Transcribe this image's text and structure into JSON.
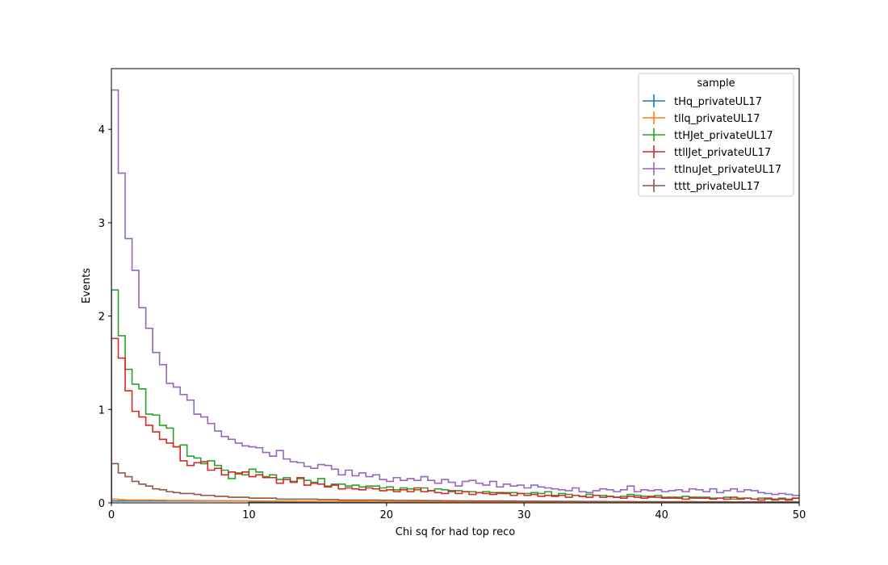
{
  "chart_data": {
    "type": "line",
    "subtype": "step-histogram",
    "xlabel": "Chi sq for had top reco",
    "ylabel": "Events",
    "xlim": [
      0,
      50
    ],
    "ylim": [
      0,
      4.65
    ],
    "x_ticks": [
      "0",
      "10",
      "20",
      "30",
      "40",
      "50"
    ],
    "y_ticks": [
      "0",
      "1",
      "2",
      "3",
      "4"
    ],
    "grid": false,
    "legend": {
      "title": "sample",
      "placement": "top-right"
    },
    "bin_edges_start": 0,
    "bin_width": 0.5,
    "series": [
      {
        "name": "tHq_privateUL17",
        "color": "#1f77b4",
        "values": [
          0.02,
          0.02,
          0.02,
          0.02,
          0.02,
          0.02,
          0.02,
          0.02,
          0.02,
          0.02,
          0.02,
          0.02,
          0.02,
          0.02,
          0.02,
          0.02,
          0.02,
          0.02,
          0.02,
          0.02,
          0.01,
          0.01,
          0.01,
          0.01,
          0.01,
          0.01,
          0.01,
          0.01,
          0.01,
          0.01,
          0.01,
          0.01,
          0.01,
          0.01,
          0.01,
          0.01,
          0.01,
          0.01,
          0.01,
          0.01,
          0.01,
          0.01,
          0.01,
          0.01,
          0.01,
          0.01,
          0.01,
          0.01,
          0.01,
          0.01,
          0.005,
          0.005,
          0.005,
          0.005,
          0.005,
          0.005,
          0.005,
          0.005,
          0.005,
          0.005,
          0.005,
          0.005,
          0.005,
          0.005,
          0.005,
          0.005,
          0.005,
          0.005,
          0.005,
          0.005,
          0.005,
          0.005,
          0.005,
          0.005,
          0.005,
          0.005,
          0.005,
          0.005,
          0.005,
          0.005,
          0.005,
          0.005,
          0.005,
          0.005,
          0.005,
          0.005,
          0.005,
          0.005,
          0.005,
          0.005,
          0.005,
          0.005,
          0.005,
          0.005,
          0.005,
          0.005,
          0.005,
          0.005,
          0.005,
          0.005
        ]
      },
      {
        "name": "tllq_privateUL17",
        "color": "#ff7f0e",
        "values": [
          0.04,
          0.035,
          0.03,
          0.03,
          0.03,
          0.03,
          0.028,
          0.028,
          0.026,
          0.026,
          0.025,
          0.025,
          0.024,
          0.024,
          0.023,
          0.023,
          0.022,
          0.022,
          0.021,
          0.021,
          0.02,
          0.02,
          0.02,
          0.019,
          0.019,
          0.018,
          0.018,
          0.017,
          0.017,
          0.017,
          0.016,
          0.016,
          0.016,
          0.015,
          0.015,
          0.015,
          0.015,
          0.014,
          0.014,
          0.014,
          0.013,
          0.013,
          0.013,
          0.013,
          0.012,
          0.012,
          0.012,
          0.012,
          0.011,
          0.011,
          0.011,
          0.011,
          0.011,
          0.01,
          0.01,
          0.01,
          0.01,
          0.01,
          0.01,
          0.01,
          0.01,
          0.009,
          0.009,
          0.009,
          0.009,
          0.009,
          0.009,
          0.009,
          0.009,
          0.009,
          0.008,
          0.008,
          0.008,
          0.008,
          0.008,
          0.008,
          0.008,
          0.008,
          0.008,
          0.008,
          0.007,
          0.007,
          0.007,
          0.007,
          0.007,
          0.007,
          0.007,
          0.007,
          0.007,
          0.007,
          0.007,
          0.007,
          0.007,
          0.007,
          0.007,
          0.007,
          0.007,
          0.007,
          0.007,
          0.007
        ]
      },
      {
        "name": "ttHJet_privateUL17",
        "color": "#2ca02c",
        "values": [
          2.28,
          1.79,
          1.43,
          1.27,
          1.22,
          0.95,
          0.94,
          0.83,
          0.8,
          0.6,
          0.62,
          0.5,
          0.48,
          0.42,
          0.45,
          0.4,
          0.35,
          0.26,
          0.32,
          0.3,
          0.36,
          0.33,
          0.28,
          0.3,
          0.25,
          0.27,
          0.23,
          0.26,
          0.24,
          0.22,
          0.26,
          0.18,
          0.2,
          0.2,
          0.18,
          0.19,
          0.17,
          0.18,
          0.18,
          0.16,
          0.17,
          0.14,
          0.16,
          0.15,
          0.14,
          0.16,
          0.13,
          0.15,
          0.14,
          0.12,
          0.13,
          0.12,
          0.12,
          0.11,
          0.12,
          0.11,
          0.1,
          0.11,
          0.11,
          0.1,
          0.1,
          0.11,
          0.1,
          0.12,
          0.08,
          0.1,
          0.09,
          0.08,
          0.07,
          0.09,
          0.08,
          0.08,
          0.07,
          0.06,
          0.07,
          0.09,
          0.08,
          0.07,
          0.06,
          0.08,
          0.06,
          0.05,
          0.06,
          0.07,
          0.05,
          0.06,
          0.06,
          0.05,
          0.05,
          0.06,
          0.04,
          0.05,
          0.05,
          0.04,
          0.05,
          0.04,
          0.03,
          0.05,
          0.04,
          0.05
        ]
      },
      {
        "name": "ttllJet_privateUL17",
        "color": "#d62728",
        "values": [
          1.76,
          1.55,
          1.2,
          0.98,
          0.92,
          0.83,
          0.76,
          0.68,
          0.64,
          0.6,
          0.45,
          0.4,
          0.43,
          0.44,
          0.35,
          0.37,
          0.3,
          0.33,
          0.31,
          0.33,
          0.28,
          0.3,
          0.27,
          0.27,
          0.21,
          0.25,
          0.22,
          0.27,
          0.19,
          0.21,
          0.2,
          0.17,
          0.19,
          0.15,
          0.16,
          0.15,
          0.14,
          0.16,
          0.15,
          0.13,
          0.14,
          0.12,
          0.14,
          0.12,
          0.16,
          0.12,
          0.13,
          0.11,
          0.1,
          0.13,
          0.1,
          0.12,
          0.09,
          0.11,
          0.1,
          0.09,
          0.11,
          0.1,
          0.08,
          0.1,
          0.08,
          0.09,
          0.07,
          0.08,
          0.07,
          0.08,
          0.06,
          0.08,
          0.07,
          0.06,
          0.08,
          0.06,
          0.07,
          0.06,
          0.05,
          0.07,
          0.06,
          0.05,
          0.07,
          0.06,
          0.05,
          0.06,
          0.05,
          0.04,
          0.06,
          0.05,
          0.05,
          0.04,
          0.05,
          0.04,
          0.06,
          0.04,
          0.05,
          0.04,
          0.03,
          0.05,
          0.04,
          0.04,
          0.03,
          0.05
        ]
      },
      {
        "name": "ttlnuJet_privateUL17",
        "color": "#9467bd",
        "values": [
          4.42,
          3.53,
          2.83,
          2.49,
          2.09,
          1.87,
          1.61,
          1.48,
          1.28,
          1.24,
          1.16,
          1.1,
          0.95,
          0.92,
          0.85,
          0.77,
          0.71,
          0.68,
          0.64,
          0.61,
          0.6,
          0.59,
          0.54,
          0.5,
          0.56,
          0.47,
          0.44,
          0.43,
          0.39,
          0.37,
          0.41,
          0.4,
          0.36,
          0.3,
          0.35,
          0.29,
          0.32,
          0.28,
          0.3,
          0.25,
          0.23,
          0.27,
          0.24,
          0.26,
          0.24,
          0.28,
          0.24,
          0.21,
          0.25,
          0.22,
          0.18,
          0.23,
          0.24,
          0.21,
          0.19,
          0.23,
          0.17,
          0.2,
          0.18,
          0.19,
          0.16,
          0.19,
          0.17,
          0.16,
          0.15,
          0.14,
          0.13,
          0.16,
          0.12,
          0.11,
          0.13,
          0.15,
          0.14,
          0.12,
          0.14,
          0.18,
          0.12,
          0.14,
          0.13,
          0.14,
          0.12,
          0.13,
          0.14,
          0.12,
          0.15,
          0.14,
          0.12,
          0.15,
          0.11,
          0.13,
          0.15,
          0.12,
          0.14,
          0.13,
          0.11,
          0.1,
          0.09,
          0.1,
          0.09,
          0.08
        ]
      },
      {
        "name": "tttt_privateUL17",
        "color": "#8c564b",
        "values": [
          0.42,
          0.32,
          0.28,
          0.23,
          0.2,
          0.18,
          0.15,
          0.14,
          0.12,
          0.11,
          0.1,
          0.1,
          0.09,
          0.08,
          0.08,
          0.07,
          0.07,
          0.06,
          0.06,
          0.06,
          0.05,
          0.05,
          0.05,
          0.05,
          0.04,
          0.04,
          0.04,
          0.04,
          0.04,
          0.04,
          0.035,
          0.035,
          0.035,
          0.03,
          0.03,
          0.03,
          0.03,
          0.03,
          0.03,
          0.028,
          0.028,
          0.026,
          0.026,
          0.025,
          0.025,
          0.024,
          0.023,
          0.023,
          0.022,
          0.022,
          0.021,
          0.021,
          0.02,
          0.02,
          0.02,
          0.02,
          0.02,
          0.019,
          0.019,
          0.018,
          0.018,
          0.018,
          0.017,
          0.017,
          0.017,
          0.016,
          0.016,
          0.016,
          0.015,
          0.015,
          0.015,
          0.015,
          0.014,
          0.014,
          0.014,
          0.014,
          0.013,
          0.013,
          0.013,
          0.013,
          0.012,
          0.012,
          0.012,
          0.012,
          0.012,
          0.011,
          0.011,
          0.011,
          0.011,
          0.011,
          0.01,
          0.01,
          0.01,
          0.01,
          0.01,
          0.01,
          0.01,
          0.01,
          0.01,
          0.01
        ]
      }
    ]
  }
}
